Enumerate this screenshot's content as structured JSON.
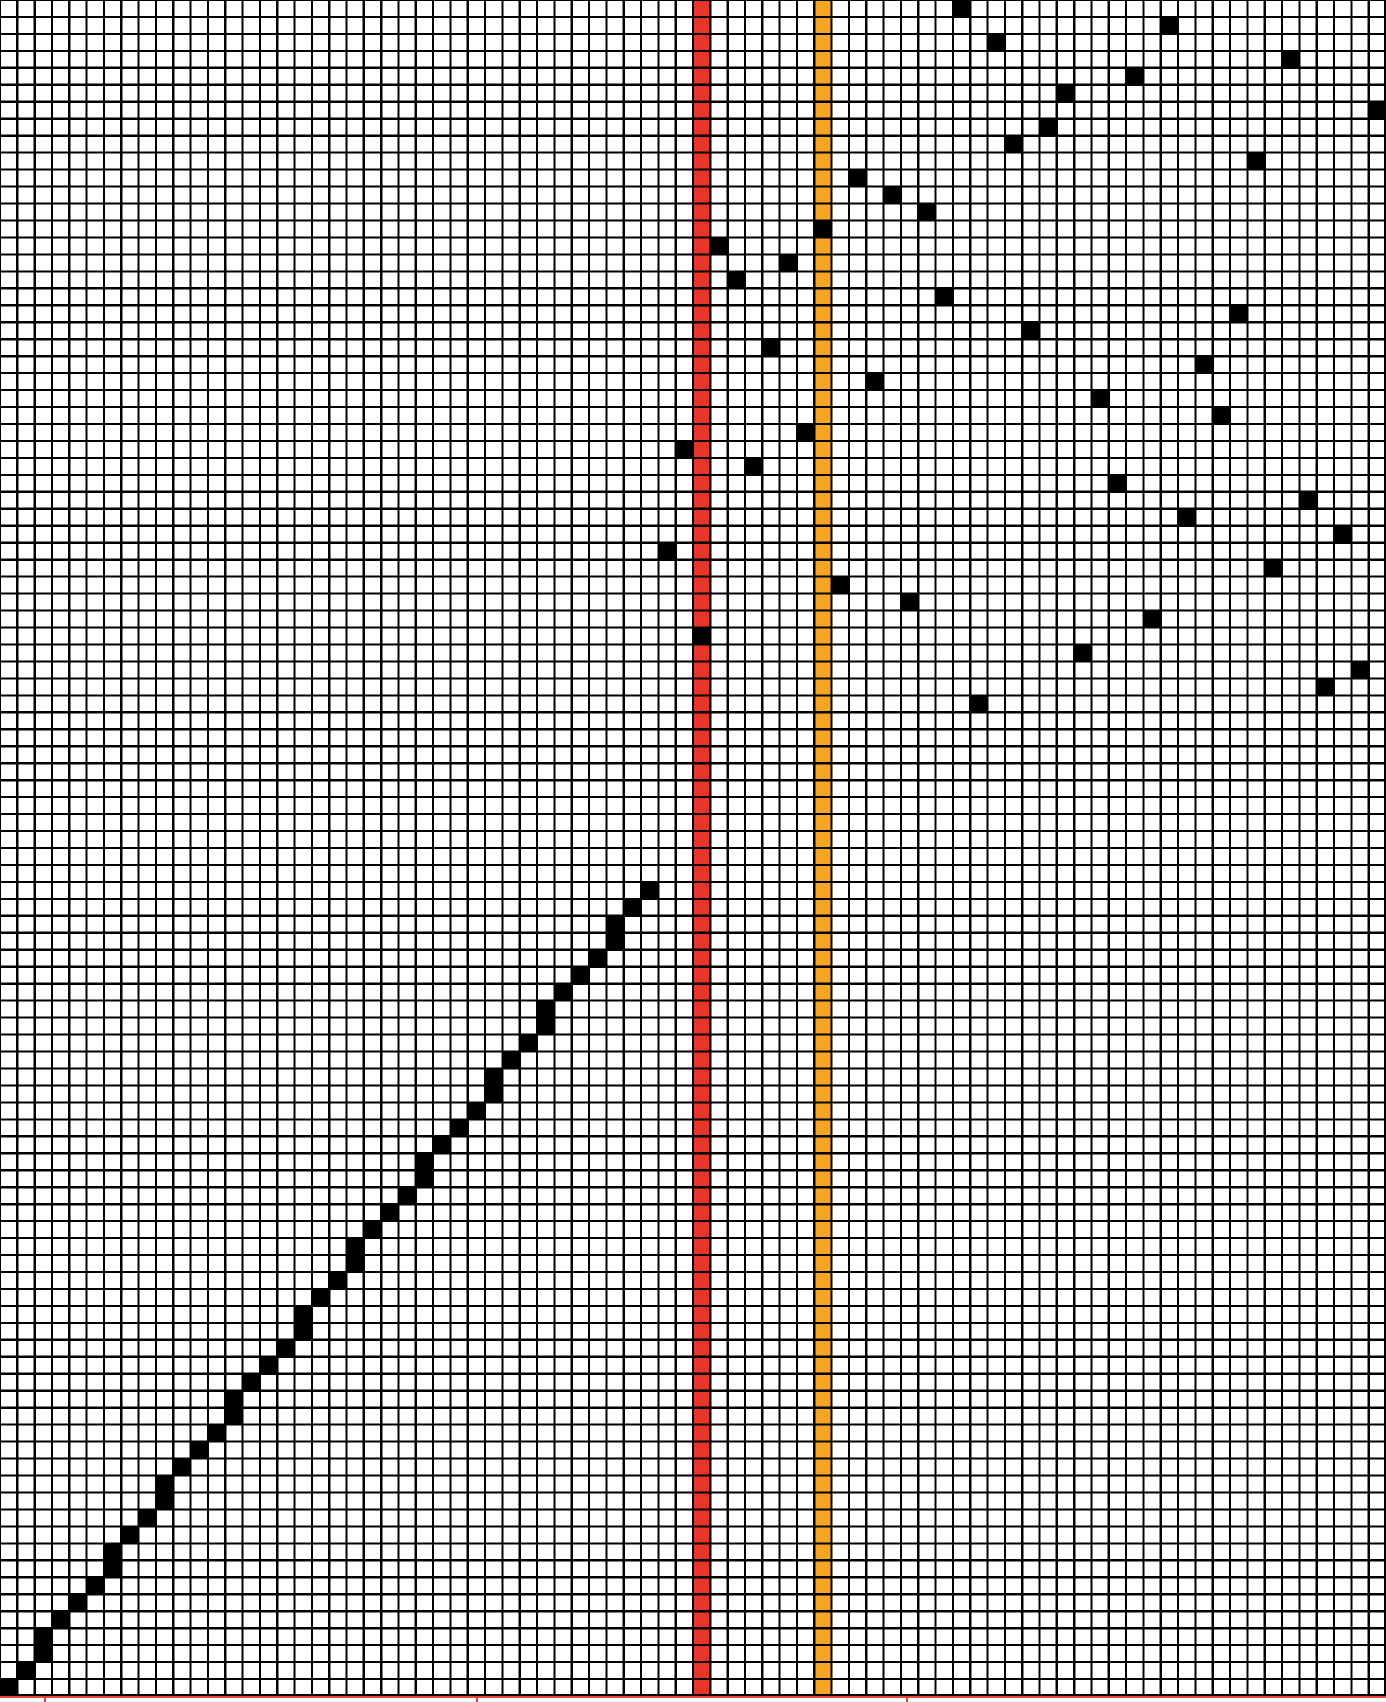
{
  "grid": {
    "columns": 80,
    "rows": 100
  },
  "colors": {
    "background": "#ffffff",
    "grid_line": "#000000",
    "filled_cell": "#000000",
    "red_marker": "#e8362a",
    "orange_marker": "#f5a623",
    "bottom_accent": "#e8443a"
  },
  "markers": [
    {
      "name": "red-marker-column",
      "column": 40,
      "color": "#e8362a"
    },
    {
      "name": "orange-marker-column",
      "column": 47,
      "color": "#f5a623"
    }
  ],
  "diagonal": {
    "start": {
      "col": 0,
      "row": 99
    },
    "end": {
      "col": 37,
      "row": 52
    }
  },
  "scatter_cells": [
    [
      55,
      0
    ],
    [
      67,
      1
    ],
    [
      57,
      2
    ],
    [
      74,
      3
    ],
    [
      65,
      4
    ],
    [
      61,
      5
    ],
    [
      79,
      6
    ],
    [
      60,
      7
    ],
    [
      58,
      8
    ],
    [
      72,
      9
    ],
    [
      49,
      10
    ],
    [
      51,
      11
    ],
    [
      53,
      12
    ],
    [
      47,
      13
    ],
    [
      41,
      14
    ],
    [
      45,
      15
    ],
    [
      42,
      16
    ],
    [
      54,
      17
    ],
    [
      71,
      18
    ],
    [
      59,
      19
    ],
    [
      44,
      20
    ],
    [
      69,
      21
    ],
    [
      50,
      22
    ],
    [
      63,
      23
    ],
    [
      70,
      24
    ],
    [
      46,
      25
    ],
    [
      39,
      26
    ],
    [
      43,
      27
    ],
    [
      64,
      28
    ],
    [
      75,
      29
    ],
    [
      68,
      30
    ],
    [
      77,
      31
    ],
    [
      38,
      32
    ],
    [
      73,
      33
    ],
    [
      48,
      34
    ],
    [
      52,
      35
    ],
    [
      66,
      36
    ],
    [
      40,
      37
    ],
    [
      62,
      38
    ],
    [
      78,
      39
    ],
    [
      76,
      40
    ],
    [
      56,
      41
    ]
  ]
}
